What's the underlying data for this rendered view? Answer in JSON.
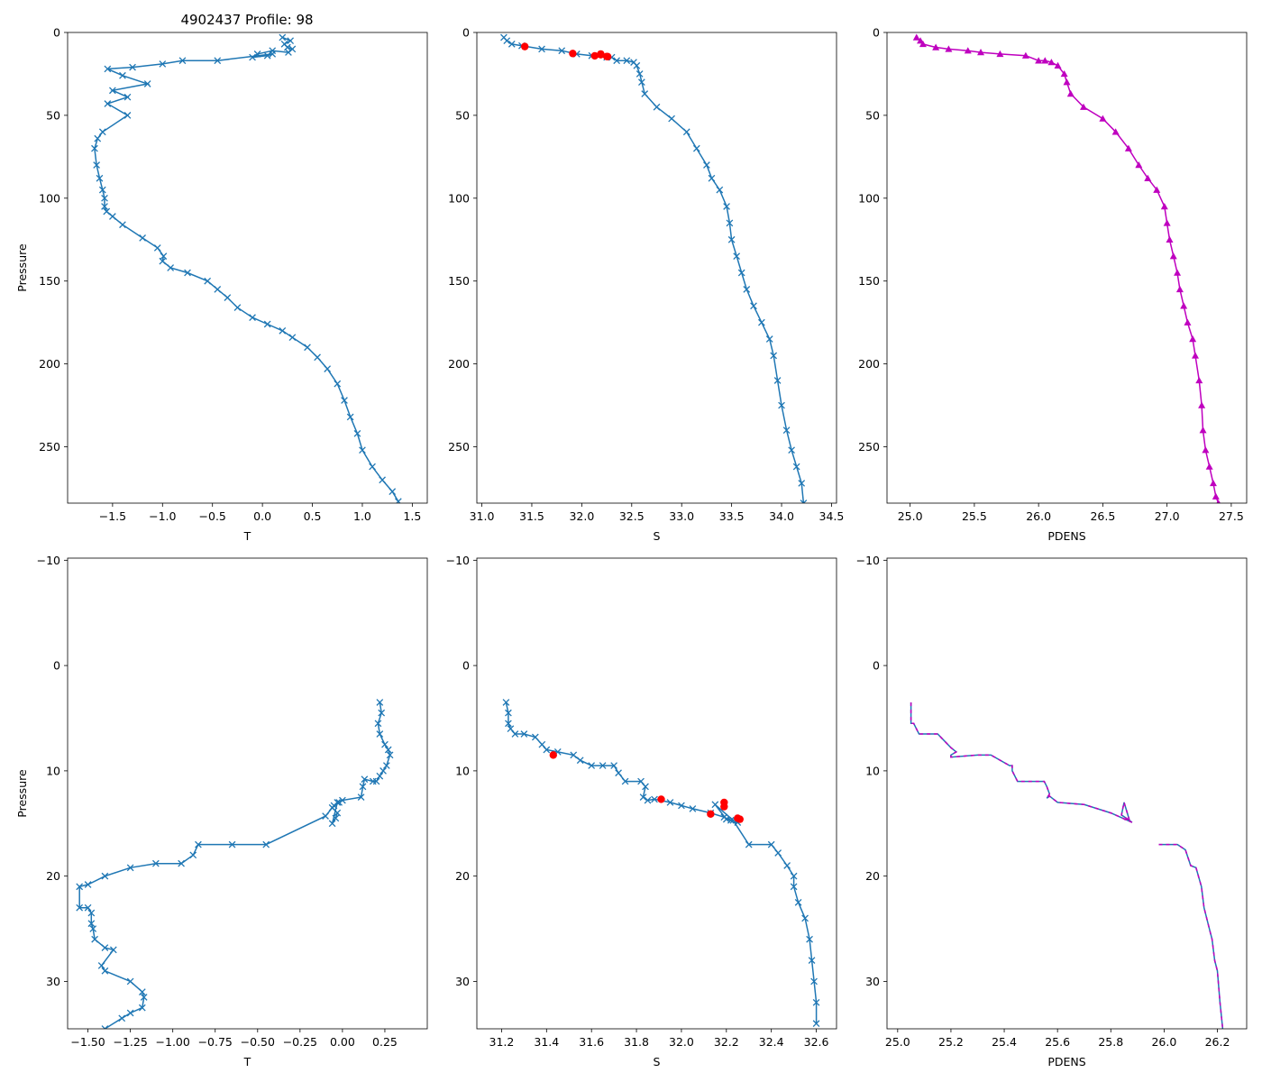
{
  "chart_data": [
    {
      "type": "line",
      "panel": "top-temperature",
      "title": "4902437 Profile: 98",
      "xlabel": "T",
      "ylabel": "Pressure",
      "xlim": [
        -1.95,
        1.65
      ],
      "ylim": [
        284,
        0
      ],
      "inverted_y": true,
      "xticks": [
        -1.5,
        -1.0,
        -0.5,
        0.0,
        0.5,
        1.0,
        1.5
      ],
      "xtick_labels": [
        "−1.5",
        "−1.0",
        "−0.5",
        "0.0",
        "0.5",
        "1.0",
        "1.5"
      ],
      "yticks": [
        0,
        50,
        100,
        150,
        200,
        250
      ],
      "ytick_labels": [
        "0",
        "50",
        "100",
        "150",
        "200",
        "250"
      ],
      "series": [
        {
          "name": "T",
          "color": "#1f77b4",
          "marker": "x",
          "x": [
            0.2,
            0.28,
            0.22,
            0.25,
            0.3,
            0.26,
            0.1,
            -0.05,
            -0.1,
            0.05,
            0.1,
            -0.45,
            -0.8,
            -1.0,
            -1.3,
            -1.55,
            -1.4,
            -1.15,
            -1.5,
            -1.35,
            -1.55,
            -1.35,
            -1.6,
            -1.65,
            -1.68,
            -1.66,
            -1.63,
            -1.6,
            -1.58,
            -1.58,
            -1.56,
            -1.5,
            -1.4,
            -1.2,
            -1.05,
            -0.99,
            -1.0,
            -0.92,
            -0.75,
            -0.55,
            -0.45,
            -0.35,
            -0.25,
            -0.1,
            0.05,
            0.2,
            0.3,
            0.45,
            0.55,
            0.65,
            0.75,
            0.82,
            0.88,
            0.95,
            1.0,
            1.1,
            1.2,
            1.3,
            1.36
          ],
          "y": [
            3,
            5,
            7,
            9,
            10,
            12,
            11,
            13,
            15,
            14,
            13,
            17,
            17,
            19,
            21,
            22,
            26,
            31,
            35,
            39,
            43,
            50,
            60,
            64,
            70,
            80,
            88,
            95,
            100,
            105,
            108,
            111,
            116,
            124,
            130,
            135,
            138,
            142,
            145,
            150,
            155,
            160,
            166,
            172,
            176,
            180,
            184,
            190,
            196,
            203,
            212,
            222,
            232,
            242,
            252,
            262,
            270,
            277,
            283
          ]
        }
      ]
    },
    {
      "type": "line",
      "panel": "top-salinity",
      "xlabel": "S",
      "xlim": [
        30.95,
        34.55
      ],
      "ylim": [
        284,
        0
      ],
      "inverted_y": true,
      "xticks": [
        31.0,
        31.5,
        32.0,
        32.5,
        33.0,
        33.5,
        34.0,
        34.5
      ],
      "xtick_labels": [
        "31.0",
        "31.5",
        "32.0",
        "32.5",
        "33.0",
        "33.5",
        "34.0",
        "34.5"
      ],
      "yticks": [
        0,
        50,
        100,
        150,
        200,
        250
      ],
      "ytick_labels": [
        "0",
        "50",
        "100",
        "150",
        "200",
        "250"
      ],
      "series": [
        {
          "name": "S",
          "color": "#1f77b4",
          "marker": "x",
          "x": [
            31.22,
            31.25,
            31.3,
            31.4,
            31.6,
            31.8,
            31.95,
            32.1,
            32.25,
            32.3,
            32.35,
            32.45,
            32.52,
            32.55,
            32.58,
            32.6,
            32.63,
            32.75,
            32.9,
            33.05,
            33.15,
            33.25,
            33.3,
            33.38,
            33.45,
            33.48,
            33.5,
            33.55,
            33.6,
            33.65,
            33.72,
            33.8,
            33.88,
            33.92,
            33.96,
            34.0,
            34.05,
            34.1,
            34.15,
            34.2,
            34.22
          ],
          "y": [
            3,
            5,
            7,
            8,
            10,
            11,
            13,
            14,
            15,
            15,
            17,
            17,
            18,
            20,
            25,
            30,
            37,
            45,
            52,
            60,
            70,
            80,
            88,
            95,
            105,
            115,
            125,
            135,
            145,
            155,
            165,
            175,
            185,
            195,
            210,
            225,
            240,
            252,
            262,
            272,
            284
          ]
        },
        {
          "name": "flagged S",
          "color": "#ff0000",
          "marker": "o",
          "x": [
            31.43,
            31.91,
            32.13,
            32.19,
            32.19,
            32.25,
            32.26
          ],
          "y": [
            8.5,
            12.7,
            14.1,
            13.0,
            13.4,
            14.5,
            14.6
          ]
        }
      ]
    },
    {
      "type": "line",
      "panel": "top-density",
      "xlabel": "PDENS",
      "xlim": [
        24.82,
        27.62
      ],
      "ylim": [
        284,
        0
      ],
      "inverted_y": true,
      "xticks": [
        25.0,
        25.5,
        26.0,
        26.5,
        27.0,
        27.5
      ],
      "xtick_labels": [
        "25.0",
        "25.5",
        "26.0",
        "26.5",
        "27.0",
        "27.5"
      ],
      "yticks": [
        0,
        50,
        100,
        150,
        200,
        250
      ],
      "ytick_labels": [
        "0",
        "50",
        "100",
        "150",
        "200",
        "250"
      ],
      "series": [
        {
          "name": "PDENS",
          "color": "#bf00bf",
          "marker": "^",
          "x": [
            25.05,
            25.08,
            25.1,
            25.2,
            25.3,
            25.45,
            25.55,
            25.7,
            25.9,
            26.0,
            26.05,
            26.1,
            26.15,
            26.2,
            26.22,
            26.25,
            26.35,
            26.5,
            26.6,
            26.7,
            26.78,
            26.85,
            26.92,
            26.98,
            27.0,
            27.02,
            27.05,
            27.08,
            27.1,
            27.13,
            27.16,
            27.2,
            27.22,
            27.25,
            27.27,
            27.28,
            27.3,
            27.33,
            27.36,
            27.38,
            27.4
          ],
          "y": [
            3,
            5,
            7,
            9,
            10,
            11,
            12,
            13,
            14,
            17,
            17,
            18,
            20,
            25,
            30,
            37,
            45,
            52,
            60,
            70,
            80,
            88,
            95,
            105,
            115,
            125,
            135,
            145,
            155,
            165,
            175,
            185,
            195,
            210,
            225,
            240,
            252,
            262,
            272,
            280,
            284
          ]
        }
      ]
    },
    {
      "type": "line",
      "panel": "bottom-temperature",
      "xlabel": "T",
      "ylabel": "Pressure",
      "xlim": [
        -1.62,
        0.5
      ],
      "ylim": [
        34.5,
        -10.2
      ],
      "inverted_y": true,
      "xticks": [
        -1.5,
        -1.25,
        -1.0,
        -0.75,
        -0.5,
        -0.25,
        0.0,
        0.25
      ],
      "xtick_labels": [
        "−1.50",
        "−1.25",
        "−1.00",
        "−0.75",
        "−0.50",
        "−0.25",
        "0.00",
        "0.25"
      ],
      "yticks": [
        -10,
        0,
        10,
        20,
        30
      ],
      "ytick_labels": [
        "−10",
        "0",
        "10",
        "20",
        "30"
      ],
      "series": [
        {
          "name": "T",
          "color": "#1f77b4",
          "marker": "x",
          "x": [
            0.22,
            0.23,
            0.21,
            0.22,
            0.25,
            0.27,
            0.28,
            0.26,
            0.24,
            0.22,
            0.2,
            0.18,
            0.13,
            0.12,
            0.11,
            0.0,
            -0.02,
            -0.06,
            -0.03,
            -0.04,
            -0.06,
            -0.03,
            -0.05,
            -0.1,
            -0.45,
            -0.65,
            -0.85,
            -0.88,
            -0.95,
            -1.1,
            -1.25,
            -1.4,
            -1.5,
            -1.55,
            -1.55,
            -1.5,
            -1.48,
            -1.48,
            -1.47,
            -1.46,
            -1.4,
            -1.35,
            -1.42,
            -1.4,
            -1.25,
            -1.18,
            -1.17,
            -1.18,
            -1.25,
            -1.3,
            -1.4
          ],
          "y": [
            3.5,
            4.5,
            5.5,
            6.5,
            7.5,
            8.0,
            8.5,
            9.5,
            10.0,
            10.5,
            11.0,
            11.0,
            10.8,
            11.5,
            12.5,
            12.8,
            13.0,
            13.5,
            14.0,
            14.5,
            15.0,
            13.0,
            13.3,
            14.3,
            17.0,
            17.0,
            17.0,
            18.0,
            18.8,
            18.8,
            19.2,
            20.0,
            20.8,
            21.0,
            23.0,
            23.0,
            23.5,
            24.5,
            25.0,
            26.0,
            26.8,
            27.0,
            28.5,
            29.0,
            30.0,
            31.0,
            31.5,
            32.5,
            33.0,
            33.5,
            34.5
          ]
        }
      ]
    },
    {
      "type": "line",
      "panel": "bottom-salinity",
      "xlabel": "S",
      "xlim": [
        31.09,
        32.69
      ],
      "ylim": [
        34.5,
        -10.2
      ],
      "inverted_y": true,
      "xticks": [
        31.2,
        31.4,
        31.6,
        31.8,
        32.0,
        32.2,
        32.4,
        32.6
      ],
      "xtick_labels": [
        "31.2",
        "31.4",
        "31.6",
        "31.8",
        "32.0",
        "32.2",
        "32.4",
        "32.6"
      ],
      "yticks": [
        -10,
        0,
        10,
        20,
        30
      ],
      "ytick_labels": [
        "−10",
        "0",
        "10",
        "20",
        "30"
      ],
      "series": [
        {
          "name": "S",
          "color": "#1f77b4",
          "marker": "x",
          "x": [
            31.22,
            31.23,
            31.23,
            31.24,
            31.26,
            31.3,
            31.35,
            31.38,
            31.4,
            31.45,
            31.52,
            31.55,
            31.6,
            31.65,
            31.7,
            31.72,
            31.75,
            31.82,
            31.84,
            31.83,
            31.85,
            31.88,
            31.95,
            32.0,
            32.05,
            32.13,
            32.19,
            32.22,
            32.25,
            32.2,
            32.15,
            32.23,
            32.3,
            32.4,
            32.43,
            32.47,
            32.5,
            32.5,
            32.52,
            32.55,
            32.57,
            32.58,
            32.59,
            32.6,
            32.6
          ],
          "y": [
            3.5,
            4.5,
            5.5,
            6.0,
            6.5,
            6.5,
            6.8,
            7.5,
            8.0,
            8.2,
            8.5,
            9.0,
            9.5,
            9.5,
            9.5,
            10.2,
            11.0,
            11.0,
            11.5,
            12.5,
            12.8,
            12.7,
            13.0,
            13.3,
            13.6,
            14.0,
            14.4,
            14.7,
            14.9,
            14.6,
            13.2,
            14.7,
            17.0,
            17.0,
            17.8,
            19.0,
            20.0,
            21.0,
            22.5,
            24.0,
            26.0,
            28.0,
            30.0,
            32.0,
            34.0
          ]
        },
        {
          "name": "flagged S",
          "color": "#ff0000",
          "marker": "o",
          "x": [
            31.43,
            31.91,
            32.13,
            32.19,
            32.19,
            32.25,
            32.26
          ],
          "y": [
            8.5,
            12.7,
            14.1,
            13.0,
            13.4,
            14.5,
            14.6
          ]
        }
      ]
    },
    {
      "type": "line",
      "panel": "bottom-density",
      "xlabel": "PDENS",
      "xlim": [
        24.96,
        26.31
      ],
      "ylim": [
        34.5,
        -10.2
      ],
      "inverted_y": true,
      "xticks": [
        25.0,
        25.2,
        25.4,
        25.6,
        25.8,
        26.0,
        26.2
      ],
      "xtick_labels": [
        "25.0",
        "25.2",
        "25.4",
        "25.6",
        "25.8",
        "26.0",
        "26.2"
      ],
      "yticks": [
        -10,
        0,
        10,
        20,
        30
      ],
      "ytick_labels": [
        "−10",
        "0",
        "10",
        "20",
        "30"
      ],
      "series": [
        {
          "name": "PDENS",
          "color": "#1f77b4",
          "marker": "none",
          "x": [
            25.05,
            25.05,
            25.05,
            25.06,
            25.08,
            25.12,
            25.15,
            25.2,
            25.22,
            25.2,
            25.2,
            25.3,
            25.35,
            25.42,
            25.43,
            25.43,
            25.45,
            25.55,
            25.56,
            25.57,
            25.56,
            25.57,
            25.6,
            25.7,
            25.8,
            25.88,
            25.87,
            25.85,
            25.84,
            25.87,
            25.85
          ],
          "y": [
            3.5,
            4.5,
            5.5,
            5.5,
            6.5,
            6.5,
            6.5,
            7.8,
            8.2,
            8.5,
            8.7,
            8.5,
            8.5,
            9.5,
            9.5,
            10.0,
            11.0,
            11.0,
            11.5,
            12.2,
            12.6,
            12.4,
            13.0,
            13.2,
            14.0,
            14.9,
            14.7,
            13.0,
            14.2,
            14.7,
            14.6
          ]
        },
        {
          "name": "PDENS lower",
          "color": "#1f77b4",
          "marker": "none",
          "x": [
            25.98,
            26.05,
            26.08,
            26.1,
            26.12,
            26.14,
            26.15,
            26.17,
            26.18,
            26.19,
            26.2,
            26.21,
            26.22
          ],
          "y": [
            17.0,
            17.0,
            17.5,
            19.0,
            19.2,
            21.0,
            23.0,
            25.0,
            26.0,
            28.0,
            29.0,
            32.0,
            34.5
          ]
        }
      ]
    }
  ]
}
